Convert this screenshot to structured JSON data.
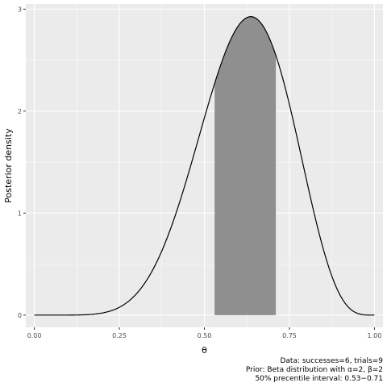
{
  "chart_data": {
    "type": "area",
    "xlabel": "θ",
    "ylabel": "Posterior density",
    "xlim": [
      -0.025,
      1.025
    ],
    "ylim": [
      -0.12,
      3.05
    ],
    "x_ticks": [
      0.0,
      0.25,
      0.5,
      0.75,
      1.0
    ],
    "x_tick_labels": [
      "0.00",
      "0.25",
      "0.50",
      "0.75",
      "1.00"
    ],
    "y_ticks": [
      0,
      1,
      2,
      3
    ],
    "y_tick_labels": [
      "0",
      "1",
      "2",
      "3"
    ],
    "grid": true,
    "series": [
      {
        "distribution": "Beta",
        "alpha": 8,
        "beta": 5,
        "x_range": [
          0,
          1
        ]
      }
    ],
    "shaded_interval": [
      0.53,
      0.71
    ],
    "caption": [
      "Data: successes=6, trials=9",
      "Prior: Beta distribution with α=2, β=2",
      "50% precentile interval: 0.53−0.71"
    ],
    "colors": {
      "panel": "#ebebeb",
      "grid": "#ffffff",
      "curve": "#000000",
      "shade": "#8f8f8f",
      "tick": "#333333"
    }
  }
}
